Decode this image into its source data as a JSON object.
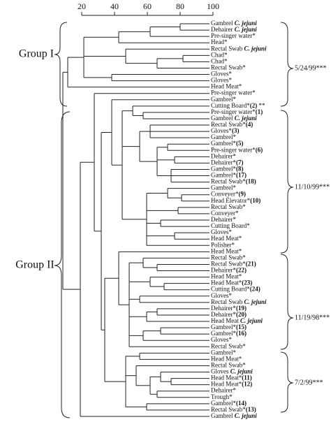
{
  "scale": {
    "ticks": [
      20,
      40,
      60,
      80,
      100
    ]
  },
  "groups": [
    {
      "label": "Group I"
    },
    {
      "label": "Group II"
    }
  ],
  "dates": [
    "5/24/99***",
    "11/10/99***",
    "11/19/98***",
    "7/2/99***"
  ],
  "leaves": [
    {
      "label": "Gambrel",
      "strain": "C. jejuni"
    },
    {
      "label": "Dehairer",
      "strain": "C. jejuni"
    },
    {
      "label": "Pre-singer water*"
    },
    {
      "label": "Head*"
    },
    {
      "label": "Rectal Swab",
      "strain": "C. jejuni"
    },
    {
      "label": "Chad*"
    },
    {
      "label": "Chad*"
    },
    {
      "label": "Rectal Swab*"
    },
    {
      "label": "Gloves*"
    },
    {
      "label": "Gloves*"
    },
    {
      "label": "Head Meat*"
    },
    {
      "label": "Pre-singer water*"
    },
    {
      "label": "Gambrel*"
    },
    {
      "label": "Cutting Board*",
      "isolate": "(2)",
      "note": "**"
    },
    {
      "label": "Pre-singer water*",
      "isolate": "(1)"
    },
    {
      "label": "Gambrel",
      "strain": "C. jejuni"
    },
    {
      "label": "Rectal Swab*",
      "isolate": "(4)"
    },
    {
      "label": "Gloves*",
      "isolate": "(3)"
    },
    {
      "label": "Gambrel*"
    },
    {
      "label": "Gambrel*",
      "isolate": "(5)"
    },
    {
      "label": "Pre-singer water*",
      "isolate": "(6)"
    },
    {
      "label": "Dehairer*"
    },
    {
      "label": "Dehairer*",
      "isolate": "(7)"
    },
    {
      "label": "Gambrel*",
      "isolate": "(8)"
    },
    {
      "label": "Gambrel*",
      "isolate": "(17)"
    },
    {
      "label": "Rectal Swab*",
      "isolate": "(18)"
    },
    {
      "label": "Gambrel*"
    },
    {
      "label": "Conveyer*",
      "isolate": "(9)"
    },
    {
      "label": "Head Elevator*",
      "isolate": "(10)"
    },
    {
      "label": "Rectal Swab*"
    },
    {
      "label": "Conveyer*"
    },
    {
      "label": "Dehairer*"
    },
    {
      "label": "Cutting Board*"
    },
    {
      "label": "Gloves*"
    },
    {
      "label": "Head Meat*"
    },
    {
      "label": "Polisher*"
    },
    {
      "label": "Head Meat*"
    },
    {
      "label": "Rectal Swab*"
    },
    {
      "label": "Rectal Swab*",
      "isolate": "(21)"
    },
    {
      "label": "Dehairer*",
      "isolate": "(22)"
    },
    {
      "label": "Head Meat*"
    },
    {
      "label": "Head Meat*",
      "isolate": "(23)"
    },
    {
      "label": "Cutting Board*",
      "isolate": "(24)"
    },
    {
      "label": "Gloves*"
    },
    {
      "label": "Rectal Swab",
      "strain": "C. jejuni"
    },
    {
      "label": "Dehairer*",
      "isolate": "(19)"
    },
    {
      "label": "Dehairer*",
      "isolate": "(20)"
    },
    {
      "label": "Head Meat",
      "strain": "C. jejuni"
    },
    {
      "label": "Gambrel*",
      "isolate": "(15)"
    },
    {
      "label": "Gambrel*",
      "isolate": "(16)"
    },
    {
      "label": "Gloves*"
    },
    {
      "label": "Rectal Swab*"
    },
    {
      "label": "Gambrel*"
    },
    {
      "label": "Head Meat*"
    },
    {
      "label": "Rectal Swab*"
    },
    {
      "label": "Gloves",
      "strain": "C. jejuni"
    },
    {
      "label": "Head Meat*",
      "isolate": "(11)"
    },
    {
      "label": "Head Meat*",
      "isolate": "(12)"
    },
    {
      "label": "Dehairer*"
    },
    {
      "label": "Trough*"
    },
    {
      "label": "Gambrel*",
      "isolate": "(14)"
    },
    {
      "label": "Rectal Swab*",
      "isolate": "(13)"
    },
    {
      "label": "Gambrel",
      "strain": "C. jejuni"
    }
  ]
}
